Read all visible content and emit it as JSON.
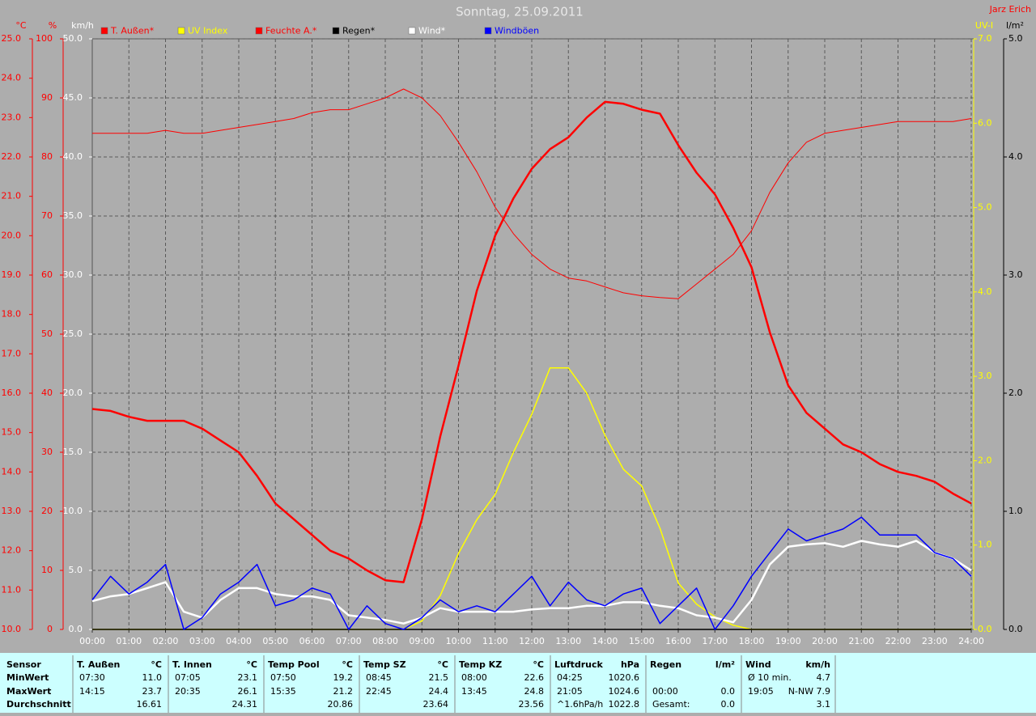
{
  "chart_data": {
    "type": "line",
    "title": "Sonntag, 25.09.2011",
    "author": "Jarz Erich",
    "xlim": [
      0,
      24
    ],
    "xticks": [
      {
        "value": 0,
        "label": "00:00"
      },
      {
        "value": 1,
        "label": "01:00"
      },
      {
        "value": 2,
        "label": "02:00"
      },
      {
        "value": 3,
        "label": "03:00"
      },
      {
        "value": 4,
        "label": "04:00"
      },
      {
        "value": 5,
        "label": "05:00"
      },
      {
        "value": 6,
        "label": "06:00"
      },
      {
        "value": 7,
        "label": "07:00"
      },
      {
        "value": 8,
        "label": "08:00"
      },
      {
        "value": 9,
        "label": "09:00"
      },
      {
        "value": 10,
        "label": "10:00"
      },
      {
        "value": 11,
        "label": "11:00"
      },
      {
        "value": 12,
        "label": "12:00"
      },
      {
        "value": 13,
        "label": "13:00"
      },
      {
        "value": 14,
        "label": "14:00"
      },
      {
        "value": 15,
        "label": "15:00"
      },
      {
        "value": 16,
        "label": "16:00"
      },
      {
        "value": 17,
        "label": "17:00"
      },
      {
        "value": 18,
        "label": "18:00"
      },
      {
        "value": 19,
        "label": "19:00"
      },
      {
        "value": 20,
        "label": "20:00"
      },
      {
        "value": 21,
        "label": "21:00"
      },
      {
        "value": 22,
        "label": "22:00"
      },
      {
        "value": 23,
        "label": "23:00"
      },
      {
        "value": 24,
        "label": "24:00"
      }
    ],
    "grid": true,
    "axes": [
      {
        "unit": "°C",
        "color": "#ff0000",
        "side": "left",
        "lim": [
          10,
          25
        ],
        "ticks": [
          {
            "value": 25,
            "label": "25.0"
          },
          {
            "value": 24,
            "label": "24.0"
          },
          {
            "value": 23,
            "label": "23.0"
          },
          {
            "value": 22,
            "label": "22.0"
          },
          {
            "value": 21,
            "label": "21.0"
          },
          {
            "value": 20,
            "label": "20.0"
          },
          {
            "value": 19,
            "label": "19.0"
          },
          {
            "value": 18,
            "label": "18.0"
          },
          {
            "value": 17,
            "label": "17.0"
          },
          {
            "value": 16,
            "label": "16.0"
          },
          {
            "value": 15,
            "label": "15.0"
          },
          {
            "value": 14,
            "label": "14.0"
          },
          {
            "value": 13,
            "label": "13.0"
          },
          {
            "value": 12,
            "label": "12.0"
          },
          {
            "value": 11,
            "label": "11.0"
          },
          {
            "value": 10,
            "label": "10.0"
          }
        ]
      },
      {
        "unit": "%",
        "color": "#ff0000",
        "side": "left",
        "lim": [
          0,
          100
        ],
        "ticks": [
          100,
          90,
          80,
          70,
          60,
          50,
          40,
          30,
          20,
          10,
          0
        ]
      },
      {
        "unit": "km/h",
        "color": "#ffffff",
        "side": "left",
        "lim": [
          0,
          50
        ],
        "grid": true,
        "ticks": [
          {
            "value": 50,
            "label": "50.0"
          },
          {
            "value": 45,
            "label": "45.0"
          },
          {
            "value": 40,
            "label": "40.0"
          },
          {
            "value": 35,
            "label": "35.0"
          },
          {
            "value": 30,
            "label": "30.0"
          },
          {
            "value": 25,
            "label": "25.0"
          },
          {
            "value": 20,
            "label": "20.0"
          },
          {
            "value": 15,
            "label": "15.0"
          },
          {
            "value": 10,
            "label": "10.0"
          },
          {
            "value": 5,
            "label": "5.0"
          },
          {
            "value": 0,
            "label": "0.0"
          }
        ]
      },
      {
        "unit": "UV-I",
        "color": "#ffff00",
        "side": "right",
        "lim": [
          0,
          7
        ],
        "ticks": [
          {
            "value": 7,
            "label": "7.0"
          },
          {
            "value": 6,
            "label": "6.0"
          },
          {
            "value": 5,
            "label": "5.0"
          },
          {
            "value": 4,
            "label": "4.0"
          },
          {
            "value": 3,
            "label": "3.0"
          },
          {
            "value": 2,
            "label": "2.0"
          },
          {
            "value": 1,
            "label": "1.0"
          },
          {
            "value": 0,
            "label": "0.0"
          }
        ]
      },
      {
        "unit": "l/m²",
        "color": "#000000",
        "side": "right",
        "lim": [
          0,
          5
        ],
        "ticks": [
          {
            "value": 5,
            "label": "5.0"
          },
          {
            "value": 4,
            "label": "4.0"
          },
          {
            "value": 3,
            "label": "3.0"
          },
          {
            "value": 2,
            "label": "2.0"
          },
          {
            "value": 1,
            "label": "1.0"
          },
          {
            "value": 0,
            "label": "0.0"
          }
        ]
      }
    ],
    "x": [
      0,
      0.5,
      1,
      1.5,
      2,
      2.5,
      3,
      3.5,
      4,
      4.5,
      5,
      5.5,
      6,
      6.5,
      7,
      7.5,
      8,
      8.5,
      9,
      9.5,
      10,
      10.5,
      11,
      11.5,
      12,
      12.5,
      13,
      13.5,
      14,
      14.5,
      15,
      15.5,
      16,
      16.5,
      17,
      17.5,
      18,
      18.5,
      19,
      19.5,
      20,
      20.5,
      21,
      21.5,
      22,
      22.5,
      23,
      23.5,
      24
    ],
    "series": [
      {
        "name": "T. Außen*",
        "color": "#ff0000",
        "axis": 0,
        "line_width": 2.5,
        "values": [
          15.6,
          15.55,
          15.4,
          15.3,
          15.3,
          15.3,
          15.1,
          14.8,
          14.5,
          13.9,
          13.2,
          12.8,
          12.4,
          12.0,
          11.8,
          11.5,
          11.25,
          11.2,
          12.8,
          14.9,
          16.7,
          18.6,
          20.0,
          20.95,
          21.7,
          22.2,
          22.5,
          23.0,
          23.4,
          23.35,
          23.2,
          23.1,
          22.3,
          21.6,
          21.05,
          20.2,
          19.2,
          17.55,
          16.2,
          15.5,
          15.1,
          14.7,
          14.5,
          14.2,
          14.0,
          13.9,
          13.75,
          13.45,
          13.2
        ]
      },
      {
        "name": "UV Index",
        "color": "#ffff00",
        "axis": 3,
        "line_width": 1.5,
        "values": [
          0,
          0,
          0,
          0,
          0,
          0,
          0,
          0,
          0,
          0,
          0,
          0,
          0,
          0,
          0,
          0,
          0,
          0,
          0.1,
          0.4,
          0.9,
          1.3,
          1.6,
          2.1,
          2.55,
          3.1,
          3.1,
          2.8,
          2.3,
          1.9,
          1.7,
          1.2,
          0.55,
          0.3,
          0.15,
          0.05,
          0,
          0,
          0,
          0,
          0,
          0,
          0,
          0,
          0,
          0,
          0,
          0,
          0
        ]
      },
      {
        "name": "Feuchte A.*",
        "color": "#ff0000",
        "axis": 1,
        "line_width": 1,
        "values": [
          84,
          84,
          84,
          84,
          84.5,
          84,
          84,
          84.5,
          85,
          85.5,
          86,
          86.5,
          87.5,
          88,
          88,
          89,
          90,
          91.5,
          90,
          87,
          82.5,
          77.5,
          71.5,
          67,
          63.5,
          61,
          59.5,
          59,
          58,
          57,
          56.5,
          56.2,
          56,
          58.5,
          61,
          63.5,
          67.5,
          74,
          79,
          82.5,
          84,
          84.5,
          85,
          85.5,
          86,
          86,
          86,
          86,
          86.5
        ]
      },
      {
        "name": "Regen*",
        "color": "#000000",
        "axis": 4,
        "line_width": 1.5,
        "values": [
          0,
          0,
          0,
          0,
          0,
          0,
          0,
          0,
          0,
          0,
          0,
          0,
          0,
          0,
          0,
          0,
          0,
          0,
          0,
          0,
          0,
          0,
          0,
          0,
          0,
          0,
          0,
          0,
          0,
          0,
          0,
          0,
          0,
          0,
          0,
          0,
          0,
          0,
          0,
          0,
          0,
          0,
          0,
          0,
          0,
          0,
          0,
          0,
          0
        ]
      },
      {
        "name": "Wind*",
        "color": "#ffffff",
        "axis": 2,
        "line_width": 2.5,
        "values": [
          2.4,
          2.8,
          3.0,
          3.5,
          4.0,
          1.5,
          1.0,
          2.5,
          3.5,
          3.5,
          3.0,
          2.8,
          2.8,
          2.5,
          1.2,
          1.0,
          0.8,
          0.5,
          1.0,
          1.8,
          1.5,
          1.5,
          1.5,
          1.5,
          1.7,
          1.8,
          1.8,
          2.0,
          2.0,
          2.3,
          2.3,
          2.0,
          1.8,
          1.2,
          1.0,
          0.6,
          2.5,
          5.5,
          7.0,
          7.2,
          7.3,
          7.0,
          7.5,
          7.2,
          7.0,
          7.5,
          6.5,
          6.0,
          5.0
        ]
      },
      {
        "name": "Windböen",
        "color": "#0000ff",
        "axis": 2,
        "line_width": 1.5,
        "values": [
          2.5,
          4.5,
          3,
          4,
          5.5,
          0,
          1,
          3,
          4,
          5.5,
          2,
          2.5,
          3.5,
          3,
          0,
          2,
          0.5,
          0,
          1,
          2.5,
          1.5,
          2,
          1.5,
          3,
          4.5,
          2,
          4,
          2.5,
          2,
          3,
          3.5,
          0.5,
          2,
          3.5,
          0,
          2,
          4.5,
          6.5,
          8.5,
          7.5,
          8,
          8.5,
          9.5,
          8,
          8,
          8,
          6.5,
          6,
          4.5
        ]
      }
    ]
  },
  "stats": {
    "row_labels": [
      "Sensor",
      "MinWert",
      "MaxWert",
      "Durchschnitt"
    ],
    "groups": [
      {
        "name": "T. Außen",
        "unit": "°C",
        "rows": [
          {
            "time": "07:30",
            "value": "11.0"
          },
          {
            "time": "14:15",
            "value": "23.7"
          },
          {
            "value": "16.61"
          }
        ]
      },
      {
        "name": "T. Innen",
        "unit": "°C",
        "rows": [
          {
            "time": "07:05",
            "value": "23.1"
          },
          {
            "time": "20:35",
            "value": "26.1"
          },
          {
            "value": "24.31"
          }
        ]
      },
      {
        "name": "Temp Pool",
        "unit": "°C",
        "rows": [
          {
            "time": "07:50",
            "value": "19.2"
          },
          {
            "time": "15:35",
            "value": "21.2"
          },
          {
            "value": "20.86"
          }
        ]
      },
      {
        "name": "Temp SZ",
        "unit": "°C",
        "rows": [
          {
            "time": "08:45",
            "value": "21.5"
          },
          {
            "time": "22:45",
            "value": "24.4"
          },
          {
            "value": "23.64"
          }
        ]
      },
      {
        "name": "Temp KZ",
        "unit": "°C",
        "rows": [
          {
            "time": "08:00",
            "value": "22.6"
          },
          {
            "time": "13:45",
            "value": "24.8"
          },
          {
            "value": "23.56"
          }
        ]
      },
      {
        "name": "Luftdruck",
        "unit": "hPa",
        "rows": [
          {
            "time": "04:25",
            "value": "1020.6"
          },
          {
            "time": "21:05",
            "value": "1024.6"
          },
          {
            "time": "^1.6hPa/h",
            "value": "1022.8"
          }
        ]
      },
      {
        "name": "Regen",
        "unit": "l/m²",
        "rows": [
          null,
          {
            "time": "00:00",
            "value": "0.0"
          },
          {
            "time": "Gesamt:",
            "value": "0.0"
          }
        ]
      },
      {
        "name": "Wind",
        "unit": "km/h",
        "rows": [
          {
            "time": "Ø 10 min.",
            "value": "4.7"
          },
          {
            "time": "19:05",
            "value": "N-NW 7.9"
          },
          {
            "value": "3.1"
          }
        ]
      }
    ]
  }
}
